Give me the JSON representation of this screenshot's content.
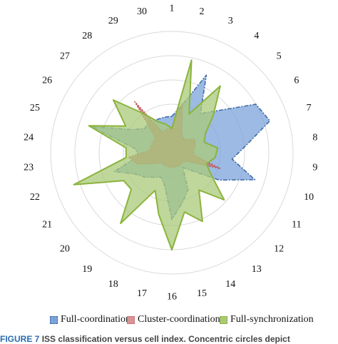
{
  "chart_data": {
    "type": "radar",
    "categories": [
      "1",
      "2",
      "3",
      "4",
      "5",
      "6",
      "7",
      "8",
      "9",
      "10",
      "11",
      "12",
      "13",
      "14",
      "15",
      "16",
      "17",
      "18",
      "19",
      "20",
      "21",
      "22",
      "23",
      "24",
      "25",
      "26",
      "27",
      "28",
      "29",
      "30"
    ],
    "rmax": 100,
    "rings": 5,
    "series": [
      {
        "name": "Full-coordination",
        "color": "#7ba3d9",
        "stroke": "#3f6ca8",
        "values": [
          30,
          40,
          70,
          40,
          52,
          80,
          85,
          62,
          50,
          72,
          45,
          22,
          15,
          33,
          42,
          55,
          28,
          22,
          25,
          30,
          35,
          50,
          28,
          30,
          70,
          38,
          30,
          32,
          30,
          30
        ]
      },
      {
        "name": "Cluster-coordination",
        "color": "#c7747a",
        "stroke": "#c0504d",
        "values": [
          20,
          42,
          20,
          15,
          16,
          22,
          20,
          18,
          18,
          42,
          14,
          12,
          12,
          12,
          12,
          12,
          12,
          12,
          12,
          12,
          18,
          30,
          36,
          18,
          18,
          18,
          18,
          52,
          18,
          20
        ]
      },
      {
        "name": "Full-synchronization",
        "color": "#a9c97a",
        "stroke": "#8bb43c",
        "values": [
          20,
          78,
          35,
          68,
          46,
          32,
          28,
          38,
          36,
          30,
          38,
          58,
          38,
          62,
          50,
          80,
          52,
          34,
          72,
          45,
          46,
          85,
          38,
          38,
          72,
          44,
          65,
          40,
          28,
          24
        ]
      }
    ]
  },
  "legend": {
    "items": [
      {
        "label": "Full-coordination",
        "color": "#7ba3d9",
        "border": "#3f6ca8"
      },
      {
        "label": "Cluster-coordination",
        "color": "#d99496",
        "border": "#c0504d"
      },
      {
        "label": "Full-synchronization",
        "color": "#a9c97a",
        "border": "#8bb43c"
      }
    ]
  },
  "caption": {
    "figure": "FIGURE 7",
    "text": "ISS classification versus cell index. Concentric circles depict"
  }
}
